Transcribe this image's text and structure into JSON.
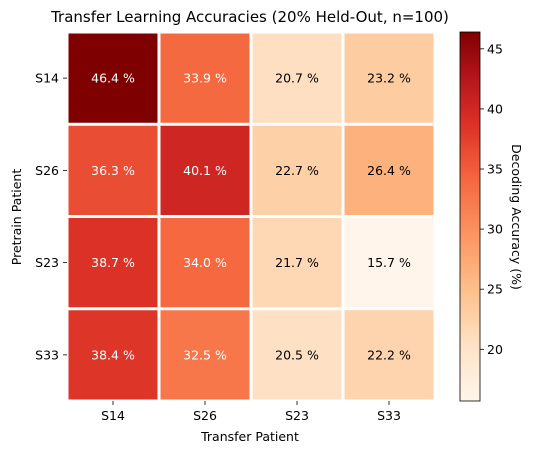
{
  "chart_data": {
    "type": "heatmap",
    "title": "Transfer Learning Accuracies (20% Held-Out, n=100)",
    "xlabel": "Transfer Patient",
    "ylabel": "Pretrain Patient",
    "x_categories": [
      "S14",
      "S26",
      "S23",
      "S33"
    ],
    "y_categories": [
      "S14",
      "S26",
      "S23",
      "S33"
    ],
    "values": [
      [
        46.4,
        33.9,
        20.7,
        23.2
      ],
      [
        36.3,
        40.1,
        22.7,
        26.4
      ],
      [
        38.7,
        34.0,
        21.7,
        15.7
      ],
      [
        38.4,
        32.5,
        20.5,
        22.2
      ]
    ],
    "cell_labels": [
      [
        "46.4 %",
        "33.9 %",
        "20.7 %",
        "23.2 %"
      ],
      [
        "36.3 %",
        "40.1 %",
        "22.7 %",
        "26.4 %"
      ],
      [
        "38.7 %",
        "34.0 %",
        "21.7 %",
        "15.7 %"
      ],
      [
        "38.4 %",
        "32.5 %",
        "20.5 %",
        "22.2 %"
      ]
    ],
    "colormap": "OrRd-like (Reds)",
    "vmin": 15.7,
    "vmax": 46.4,
    "colorbar": {
      "label": "Decoding Accuracy (%)",
      "ticks": [
        20,
        25,
        30,
        35,
        40,
        45
      ],
      "tick_labels": [
        "20",
        "25",
        "30",
        "35",
        "40",
        "45"
      ]
    },
    "grid": false,
    "legend": "colorbar-right"
  }
}
